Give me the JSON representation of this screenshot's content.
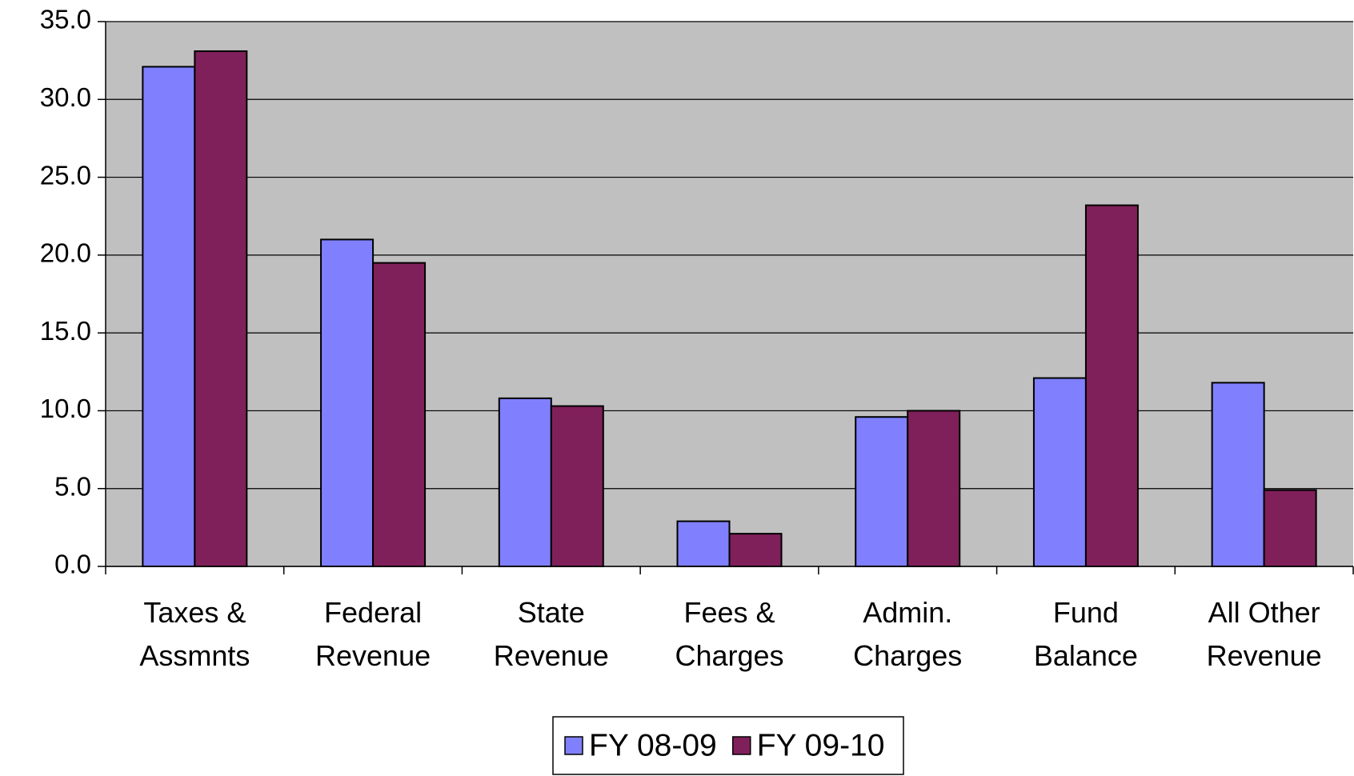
{
  "chart_data": {
    "type": "bar",
    "categories": [
      [
        "Taxes &",
        "Assmnts"
      ],
      [
        "Federal",
        "Revenue"
      ],
      [
        "State",
        "Revenue"
      ],
      [
        "Fees &",
        "Charges"
      ],
      [
        "Admin.",
        "Charges"
      ],
      [
        "Fund",
        "Balance"
      ],
      [
        "All Other",
        "Revenue"
      ]
    ],
    "series": [
      {
        "name": "FY 08-09",
        "color": "#8080ff",
        "values": [
          32.1,
          21.0,
          10.8,
          2.9,
          9.6,
          12.1,
          11.8
        ]
      },
      {
        "name": "FY 09-10",
        "color": "#80205a",
        "values": [
          33.1,
          19.5,
          10.3,
          2.1,
          10.0,
          23.2,
          4.9
        ]
      }
    ],
    "ylim": [
      0,
      35
    ],
    "yticks": [
      {
        "value": 0,
        "label": "0.0"
      },
      {
        "value": 5,
        "label": "5.0"
      },
      {
        "value": 10,
        "label": "10.0"
      },
      {
        "value": 15,
        "label": "15.0"
      },
      {
        "value": 20,
        "label": "20.0"
      },
      {
        "value": 25,
        "label": "25.0"
      },
      {
        "value": 30,
        "label": "30.0"
      },
      {
        "value": 35,
        "label": "35.0"
      }
    ],
    "grid": true,
    "legend": "bottom",
    "background": "#c0c0c0"
  }
}
